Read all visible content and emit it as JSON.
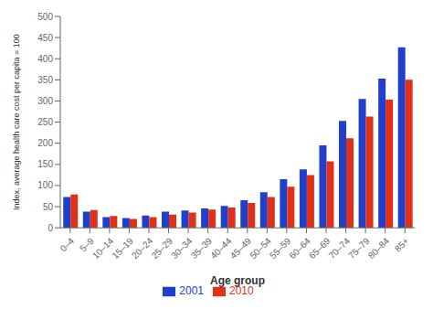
{
  "chart_data": {
    "type": "bar",
    "categories": [
      "0–4",
      "5–9",
      "10–14",
      "15–19",
      "20–24",
      "25–29",
      "30–34",
      "35–39",
      "40–44",
      "45–49",
      "50–54",
      "55–59",
      "60–64",
      "65–69",
      "70–74",
      "75–79",
      "80–84",
      "85+"
    ],
    "series": [
      {
        "name": "2001",
        "color": "#2040cc",
        "values": [
          73,
          38,
          25,
          23,
          29,
          38,
          41,
          46,
          52,
          65,
          84,
          115,
          138,
          195,
          253,
          305,
          353,
          427
        ]
      },
      {
        "name": "2010",
        "color": "#e03018",
        "values": [
          79,
          42,
          28,
          21,
          25,
          31,
          36,
          43,
          48,
          59,
          73,
          97,
          125,
          157,
          212,
          263,
          303,
          350
        ]
      }
    ],
    "xlabel": "Age group",
    "ylabel": "Index, average health care cost per capita = 100",
    "ylim": [
      0,
      500
    ],
    "yticks": [
      0,
      50,
      100,
      150,
      200,
      250,
      300,
      350,
      400,
      450,
      500
    ],
    "grid": false,
    "legend": "bottom"
  }
}
